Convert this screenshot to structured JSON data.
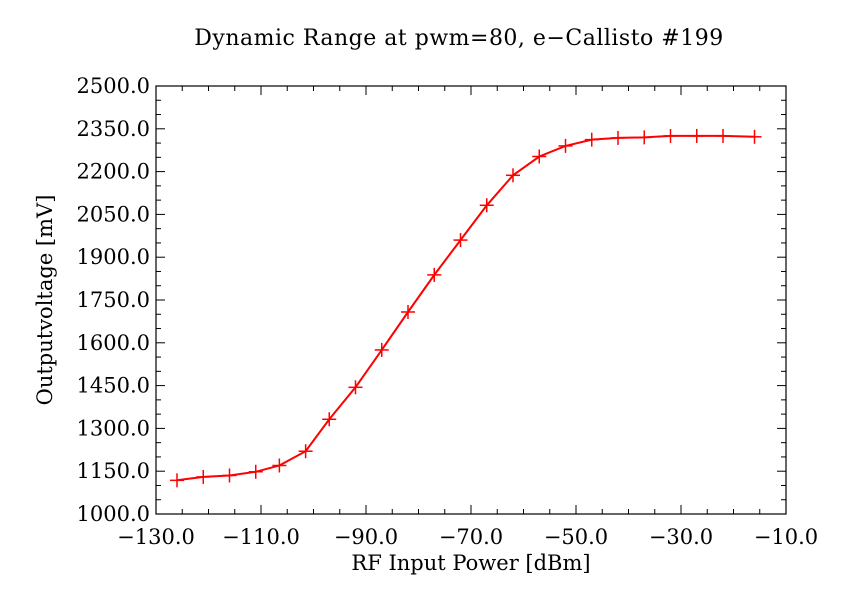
{
  "chart_data": {
    "type": "line",
    "title": "Dynamic Range at pwm=80, e−Callisto #199",
    "xlabel": "RF Input Power [dBm]",
    "ylabel": "Outputvoltage [mV]",
    "xlim": [
      -130.0,
      -10.0
    ],
    "ylim": [
      1000.0,
      2500.0
    ],
    "x_ticks": [
      "−130.0",
      "−110.0",
      "−90.0",
      "−70.0",
      "−50.0",
      "−30.0",
      "−10.0"
    ],
    "y_ticks": [
      "1000.0",
      "1150.0",
      "1300.0",
      "1450.0",
      "1600.0",
      "1750.0",
      "1900.0",
      "2050.0",
      "2200.0",
      "2350.0",
      "2500.0"
    ],
    "grid": false,
    "series": [
      {
        "color": "#ff0000",
        "marker": "plus",
        "x": [
          -126,
          -121,
          -116,
          -111,
          -106.5,
          -101.5,
          -97,
          -92,
          -87,
          -82,
          -77,
          -72,
          -67,
          -62,
          -57,
          -52,
          -47,
          -42,
          -37,
          -32,
          -27,
          -22,
          -16
        ],
        "y": [
          1118,
          1130,
          1135,
          1148,
          1170,
          1220,
          1332,
          1444,
          1575,
          1708,
          1838,
          1960,
          2082,
          2187,
          2253,
          2290,
          2312,
          2318,
          2320,
          2325,
          2325,
          2325,
          2322
        ]
      }
    ]
  }
}
